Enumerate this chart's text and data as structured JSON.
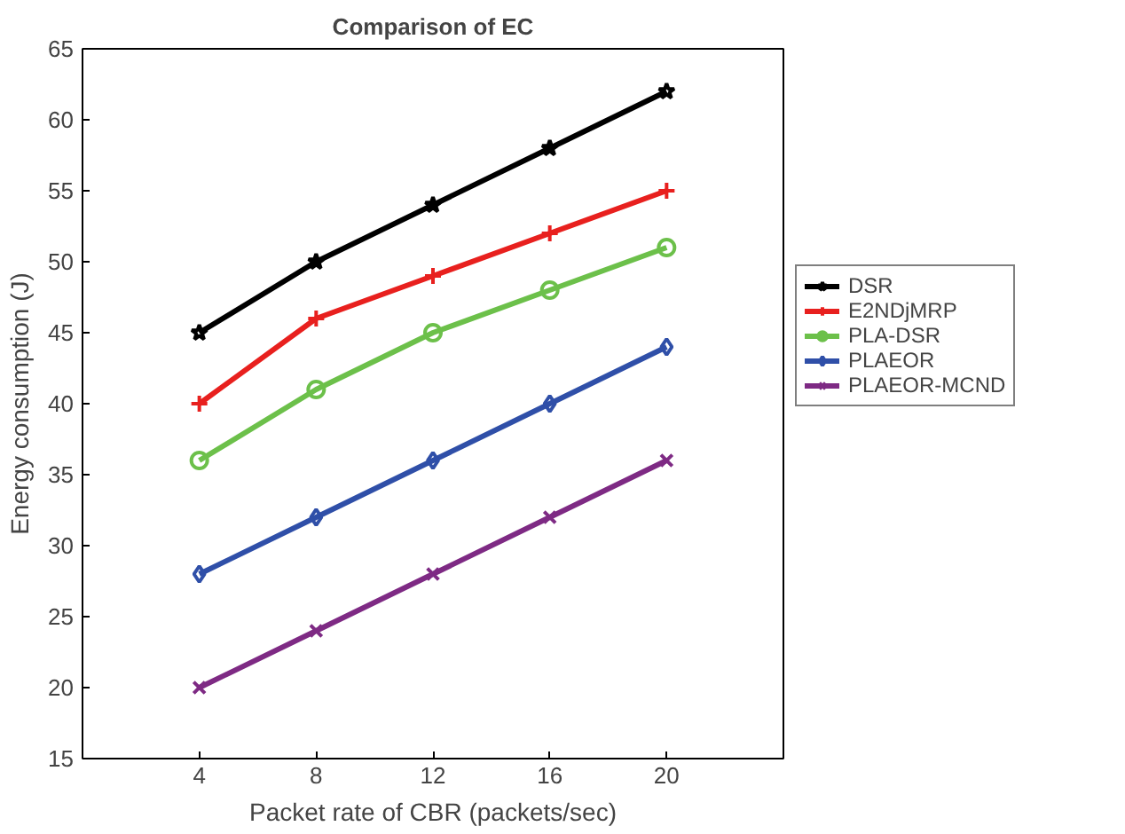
{
  "chart_data": {
    "type": "line",
    "title": "Comparison of EC",
    "xlabel": "Packet rate of CBR (packets/sec)",
    "ylabel": "Energy consumption (J)",
    "x": [
      4,
      8,
      12,
      16,
      20
    ],
    "xlim": [
      0,
      24
    ],
    "xticks": [
      4,
      8,
      12,
      16,
      20
    ],
    "ylim": [
      15,
      65
    ],
    "yticks": [
      15,
      20,
      25,
      30,
      35,
      40,
      45,
      50,
      55,
      60,
      65
    ],
    "legend": "right",
    "line_style": "solid",
    "series": [
      {
        "name": "DSR",
        "color": "#000000",
        "marker": "star",
        "values": [
          45,
          50,
          54,
          58,
          62
        ]
      },
      {
        "name": "E2NDjMRP",
        "color": "#e8201e",
        "marker": "cross",
        "values": [
          40,
          46,
          49,
          52,
          55
        ]
      },
      {
        "name": "PLA-DSR",
        "color": "#6cc04a",
        "marker": "circle",
        "values": [
          36,
          41,
          45,
          48,
          51
        ]
      },
      {
        "name": "PLAEOR",
        "color": "#2f4fa8",
        "marker": "diamond",
        "values": [
          28,
          32,
          36,
          40,
          44
        ]
      },
      {
        "name": "PLAEOR-MCND",
        "color": "#7e2a84",
        "marker": "x",
        "values": [
          20,
          24,
          28,
          32,
          36
        ]
      }
    ]
  }
}
